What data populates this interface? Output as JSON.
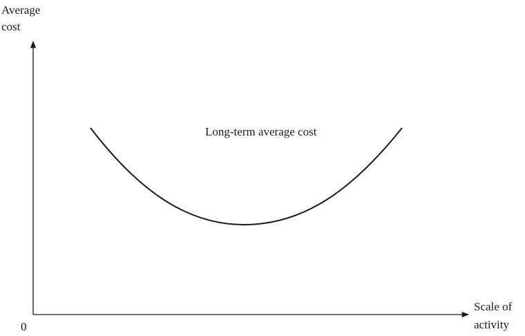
{
  "y_axis": {
    "label": [
      "Average",
      "cost"
    ]
  },
  "x_axis": {
    "label": [
      "Scale of",
      "activity"
    ]
  },
  "origin": "0",
  "curve": {
    "label": "Long-term average cost"
  }
}
